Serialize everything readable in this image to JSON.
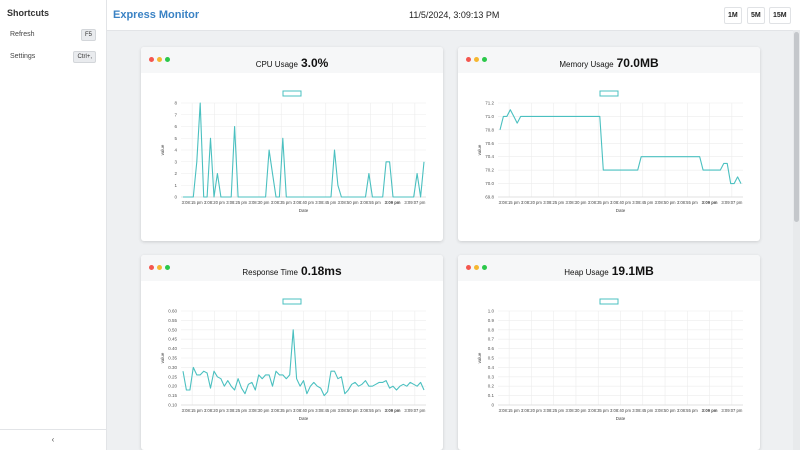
{
  "sidebar": {
    "title": "Shortcuts",
    "items": [
      {
        "label": "Refresh",
        "key": "F5"
      },
      {
        "label": "Settings",
        "key": "Ctrl+,"
      }
    ],
    "collapse_glyph": "‹"
  },
  "header": {
    "title": "Express Monitor",
    "datetime": "11/5/2024, 3:09:13 PM",
    "ranges": [
      "1M",
      "5M",
      "15M"
    ]
  },
  "colors": {
    "accent": "#3a82c4",
    "line": "#4bc0c0",
    "dot_red": "#f4574f",
    "dot_yellow": "#f5b731",
    "dot_green": "#2bc84a"
  },
  "x_ticks": [
    "3:08:15 pm",
    "3:08:20 pm",
    "3:08:25 pm",
    "3:08:30 pm",
    "3:08:35 pm",
    "3:08:40 pm",
    "3:08:45 pm",
    "3:08:50 pm",
    "3:08:55 pm",
    "3:09 pm",
    "3:09:07 pm"
  ],
  "chart_data": [
    {
      "type": "line",
      "title": "CPU Usage",
      "value": "3.0%",
      "xlabel": "Date",
      "ylabel": "value",
      "ylim": [
        0,
        8
      ],
      "yticks": [
        "0",
        "1",
        "2",
        "3",
        "4",
        "5",
        "6",
        "7",
        "8"
      ],
      "bold_ticks": [
        "3:09 pm"
      ],
      "values": [
        0,
        0,
        0,
        0,
        3,
        8,
        0,
        0,
        5,
        0,
        2,
        0,
        0,
        0,
        0,
        6,
        0,
        0,
        0,
        0,
        0,
        0,
        0,
        0,
        0,
        4,
        2,
        0,
        0,
        5,
        0,
        0,
        0,
        0,
        0,
        0,
        0,
        0,
        0,
        0,
        0,
        0,
        0,
        0,
        4,
        1,
        0,
        0,
        0,
        0,
        0,
        0,
        0,
        0,
        2,
        0,
        0,
        0,
        0,
        3,
        3,
        0,
        0,
        0,
        0,
        0,
        0,
        0,
        2,
        0,
        3
      ]
    },
    {
      "type": "line",
      "title": "Memory Usage",
      "value": "70.0MB",
      "xlabel": "Date",
      "ylabel": "value",
      "ylim": [
        69.8,
        71.2
      ],
      "yticks": [
        "69.8",
        "70.0",
        "70.2",
        "70.4",
        "70.6",
        "70.8",
        "71.0",
        "71.2"
      ],
      "bold_ticks": [
        "3:09 pm"
      ],
      "values": [
        70.8,
        71.0,
        71.0,
        71.1,
        71.0,
        70.9,
        71.0,
        71.0,
        71.0,
        71.0,
        71.0,
        71.0,
        71.0,
        71.0,
        71.0,
        71.0,
        71.0,
        71.0,
        71.0,
        71.0,
        71.0,
        71.0,
        71.0,
        71.0,
        71.0,
        71.0,
        71.0,
        71.0,
        71.0,
        71.0,
        70.2,
        70.2,
        70.2,
        70.2,
        70.2,
        70.2,
        70.2,
        70.2,
        70.2,
        70.2,
        70.2,
        70.4,
        70.4,
        70.4,
        70.4,
        70.4,
        70.4,
        70.4,
        70.4,
        70.4,
        70.4,
        70.4,
        70.4,
        70.4,
        70.4,
        70.4,
        70.4,
        70.4,
        70.4,
        70.2,
        70.2,
        70.2,
        70.2,
        70.2,
        70.2,
        70.3,
        70.3,
        70.0,
        70.0,
        70.1,
        70.0
      ]
    },
    {
      "type": "line",
      "title": "Response Time",
      "value": "0.18ms",
      "xlabel": "Date",
      "ylabel": "value",
      "ylim": [
        0.1,
        0.6
      ],
      "yticks": [
        "0.10",
        "0.15",
        "0.20",
        "0.25",
        "0.30",
        "0.35",
        "0.40",
        "0.45",
        "0.50",
        "0.55",
        "0.60"
      ],
      "bold_ticks": [
        "3:09 pm"
      ],
      "values": [
        0.28,
        0.18,
        0.18,
        0.3,
        0.26,
        0.26,
        0.28,
        0.27,
        0.19,
        0.28,
        0.25,
        0.24,
        0.2,
        0.23,
        0.2,
        0.18,
        0.24,
        0.19,
        0.16,
        0.21,
        0.22,
        0.18,
        0.26,
        0.24,
        0.26,
        0.26,
        0.2,
        0.28,
        0.26,
        0.26,
        0.24,
        0.26,
        0.5,
        0.24,
        0.2,
        0.23,
        0.16,
        0.2,
        0.22,
        0.2,
        0.19,
        0.15,
        0.17,
        0.28,
        0.28,
        0.24,
        0.25,
        0.16,
        0.18,
        0.21,
        0.22,
        0.2,
        0.21,
        0.23,
        0.2,
        0.2,
        0.21,
        0.22,
        0.22,
        0.23,
        0.19,
        0.2,
        0.18,
        0.2,
        0.21,
        0.2,
        0.22,
        0.21,
        0.2,
        0.22,
        0.18
      ]
    },
    {
      "type": "line",
      "title": "Heap Usage",
      "value": "19.1MB",
      "xlabel": "Date",
      "ylabel": "value",
      "ylim": [
        0,
        1.0
      ],
      "yticks": [
        "0",
        "0.1",
        "0.2",
        "0.3",
        "0.4",
        "0.5",
        "0.6",
        "0.7",
        "0.8",
        "0.9",
        "1.0"
      ],
      "bold_ticks": [
        "3:09 pm"
      ],
      "values": []
    }
  ]
}
